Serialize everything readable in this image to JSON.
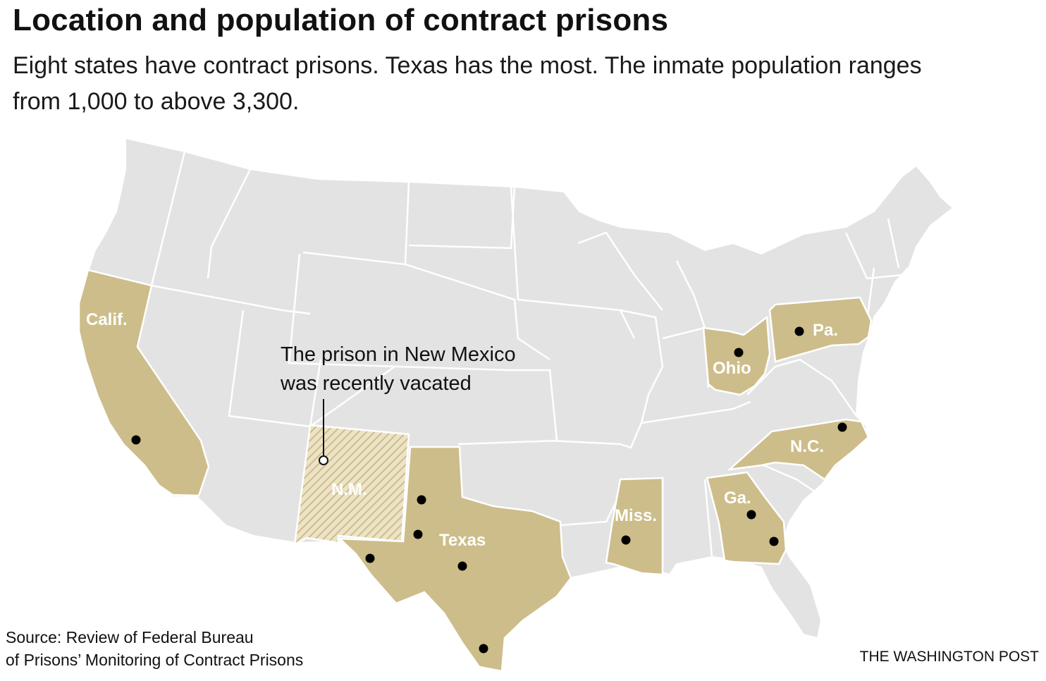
{
  "header": {
    "title": "Location and population of contract prisons",
    "subtitle": "Eight states have contract prisons. Texas has the most. The inmate population ranges from 1,000 to above 3,300."
  },
  "map": {
    "base_color": "#e3e3e3",
    "highlight_color": "#cdbd8a",
    "border_color": "#ffffff",
    "marker_color": "#000000",
    "states": {
      "california": "Calif.",
      "new_mexico": "N.M.",
      "texas": "Texas",
      "mississippi": "Miss.",
      "georgia": "Ga.",
      "north_carolina": "N.C.",
      "ohio": "Ohio",
      "pennsylvania": "Pa."
    },
    "annotation": {
      "line1": "The prison in New Mexico",
      "line2": "was recently vacated"
    }
  },
  "footer": {
    "source_line1": "Source: Review of Federal Bureau",
    "source_line2": "of Prisons’ Monitoring of Contract Prisons",
    "credit": "THE WASHINGTON POST"
  }
}
